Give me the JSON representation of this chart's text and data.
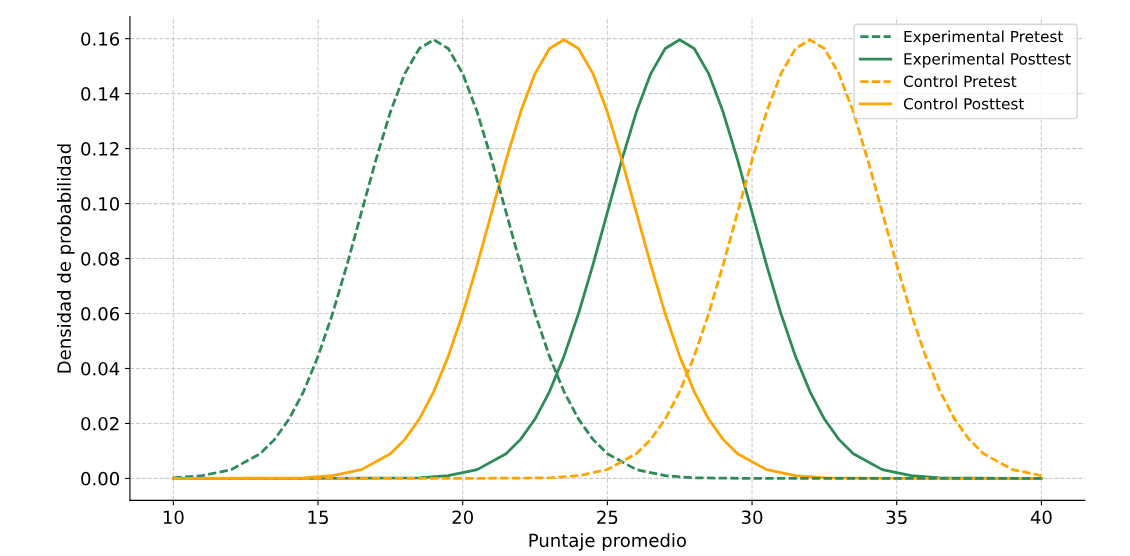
{
  "chart_data": {
    "type": "line",
    "xlabel": "Puntaje promedio",
    "ylabel": "Densidad de probabilidad",
    "xlim": [
      8.5,
      41.5
    ],
    "ylim": [
      -0.008,
      0.168
    ],
    "xticks": [
      10,
      15,
      20,
      25,
      30,
      35,
      40
    ],
    "yticks": [
      {
        "value": 0,
        "label": "0.00"
      },
      {
        "value": 0.02,
        "label": "0.02"
      },
      {
        "value": 0.04,
        "label": "0.04"
      },
      {
        "value": 0.06,
        "label": "0.06"
      },
      {
        "value": 0.08,
        "label": "0.08"
      },
      {
        "value": 0.1,
        "label": "0.10"
      },
      {
        "value": 0.12,
        "label": "0.12"
      },
      {
        "value": 0.14,
        "label": "0.14"
      },
      {
        "value": 0.16,
        "label": "0.16"
      }
    ],
    "grid": true,
    "legend": "top right",
    "series": [
      {
        "name": "Experimental Pretest",
        "color": "#2e8b57",
        "line_style": "dashed",
        "x": [
          10,
          11,
          12,
          13,
          13.5,
          14,
          14.5,
          15,
          15.5,
          16,
          16.5,
          17,
          17.5,
          18,
          18.5,
          19,
          19.5,
          20,
          20.5,
          21,
          21.5,
          22,
          22.5,
          23,
          23.5,
          24,
          24.5,
          25,
          26,
          27,
          28,
          30,
          35,
          40
        ],
        "values": [
          0.0002,
          0.001,
          0.0032,
          0.009,
          0.0142,
          0.0216,
          0.0316,
          0.0444,
          0.0599,
          0.0777,
          0.0968,
          0.1159,
          0.1333,
          0.1473,
          0.1564,
          0.1596,
          0.1564,
          0.1473,
          0.1333,
          0.1159,
          0.0968,
          0.0777,
          0.0599,
          0.0444,
          0.0316,
          0.0216,
          0.0142,
          0.009,
          0.0032,
          0.001,
          0.0002,
          0,
          0,
          0
        ]
      },
      {
        "name": "Experimental Posttest",
        "color": "#2e8b57",
        "line_style": "solid",
        "x": [
          10,
          15,
          18.5,
          19.5,
          20.5,
          21.5,
          22,
          22.5,
          23,
          23.5,
          24,
          24.5,
          25,
          25.5,
          26,
          26.5,
          27,
          27.5,
          28,
          28.5,
          29,
          29.5,
          30,
          30.5,
          31,
          31.5,
          32,
          32.5,
          33,
          33.5,
          34.5,
          35.5,
          36.5,
          40
        ],
        "values": [
          0,
          0,
          0.0002,
          0.001,
          0.0032,
          0.009,
          0.0142,
          0.0216,
          0.0316,
          0.0444,
          0.0599,
          0.0777,
          0.0968,
          0.1159,
          0.1333,
          0.1473,
          0.1564,
          0.1596,
          0.1564,
          0.1473,
          0.1333,
          0.1159,
          0.0968,
          0.0777,
          0.0599,
          0.0444,
          0.0316,
          0.0216,
          0.0142,
          0.009,
          0.0032,
          0.001,
          0.0002,
          0
        ]
      },
      {
        "name": "Control Pretest",
        "color": "#ffa500",
        "line_style": "dashed",
        "x": [
          10,
          15,
          20,
          23,
          24,
          25,
          26,
          26.5,
          27,
          27.5,
          28,
          28.5,
          29,
          29.5,
          30,
          30.5,
          31,
          31.5,
          32,
          32.5,
          33,
          33.5,
          34,
          34.5,
          35,
          35.5,
          36,
          36.5,
          37,
          37.5,
          38,
          39,
          40
        ],
        "values": [
          0,
          0,
          0,
          0.0002,
          0.001,
          0.0032,
          0.009,
          0.0142,
          0.0216,
          0.0316,
          0.0444,
          0.0599,
          0.0777,
          0.0968,
          0.1159,
          0.1333,
          0.1473,
          0.1564,
          0.1596,
          0.1564,
          0.1473,
          0.1333,
          0.1159,
          0.0968,
          0.0777,
          0.0599,
          0.0444,
          0.0316,
          0.0216,
          0.0142,
          0.009,
          0.0032,
          0.001
        ]
      },
      {
        "name": "Control Posttest",
        "color": "#ffa500",
        "line_style": "solid",
        "x": [
          10,
          14.5,
          15.5,
          16.5,
          17.5,
          18,
          18.5,
          19,
          19.5,
          20,
          20.5,
          21,
          21.5,
          22,
          22.5,
          23,
          23.5,
          24,
          24.5,
          25,
          25.5,
          26,
          26.5,
          27,
          27.5,
          28,
          28.5,
          29,
          29.5,
          30.5,
          31.5,
          32.5,
          35,
          40
        ],
        "values": [
          0,
          0.0002,
          0.001,
          0.0032,
          0.009,
          0.0142,
          0.0216,
          0.0316,
          0.0444,
          0.0599,
          0.0777,
          0.0968,
          0.1159,
          0.1333,
          0.1473,
          0.1564,
          0.1596,
          0.1564,
          0.1473,
          0.1333,
          0.1159,
          0.0968,
          0.0777,
          0.0599,
          0.0444,
          0.0316,
          0.0216,
          0.0142,
          0.009,
          0.0032,
          0.001,
          0.0002,
          0,
          0
        ]
      }
    ]
  }
}
